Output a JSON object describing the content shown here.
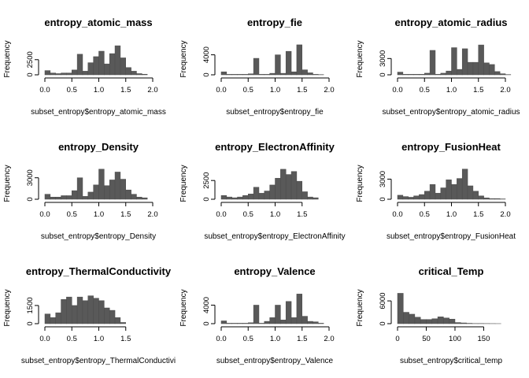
{
  "chart_data": [
    {
      "type": "bar",
      "title": "entropy_atomic_mass",
      "xlabel": "subset_entropy$entropy_atomic_mass",
      "ylabel": "Frequency",
      "bin_start": 0,
      "bin_width": 0.1,
      "values": [
        700,
        300,
        200,
        300,
        300,
        800,
        3400,
        600,
        2000,
        3000,
        3900,
        1800,
        3500,
        4800,
        2800,
        1200,
        600,
        200,
        100
      ],
      "xticks": [
        "0.0",
        "0.5",
        "1.0",
        "1.5",
        "2.0"
      ],
      "xtick_values": [
        0,
        0.5,
        1.0,
        1.5,
        2.0
      ],
      "yticks": [
        "0",
        "2500"
      ],
      "ytick_values": [
        0,
        2500
      ],
      "xlim": [
        0,
        2.0
      ],
      "ylim": [
        0,
        5200
      ]
    },
    {
      "type": "bar",
      "title": "entropy_fie",
      "xlabel": "subset_entropy$entropy_fie",
      "ylabel": "Frequency",
      "bin_start": 0,
      "bin_width": 0.1,
      "values": [
        600,
        100,
        100,
        100,
        100,
        200,
        3300,
        100,
        100,
        300,
        4000,
        300,
        4700,
        600,
        6000,
        1000,
        400,
        100,
        50,
        0,
        0
      ],
      "xticks": [
        "0.0",
        "0.5",
        "1.0",
        "1.5",
        "2.0"
      ],
      "xtick_values": [
        0,
        0.5,
        1.0,
        1.5,
        2.0
      ],
      "yticks": [
        "0",
        "4000"
      ],
      "ytick_values": [
        0,
        4000
      ],
      "xlim": [
        0,
        2.0
      ],
      "ylim": [
        0,
        6300
      ]
    },
    {
      "type": "bar",
      "title": "entropy_atomic_radius",
      "xlabel": "subset_entropy$entropy_atomic_radius",
      "ylabel": "Frequency",
      "bin_start": 0,
      "bin_width": 0.1,
      "values": [
        500,
        100,
        100,
        100,
        100,
        300,
        4500,
        100,
        300,
        700,
        5000,
        1000,
        4800,
        2300,
        2300,
        5500,
        2200,
        1900,
        600,
        200,
        50,
        0
      ],
      "xticks": [
        "0.0",
        "0.5",
        "1.0",
        "1.5",
        "2.0"
      ],
      "xtick_values": [
        0,
        0.5,
        1.0,
        1.5,
        2.0
      ],
      "yticks": [
        "0",
        "3000"
      ],
      "ytick_values": [
        0,
        3000
      ],
      "xlim": [
        0,
        2.1
      ],
      "ylim": [
        0,
        5800
      ]
    },
    {
      "type": "bar",
      "title": "entropy_Density",
      "xlabel": "subset_entropy$entropy_Density",
      "ylabel": "Frequency",
      "bin_start": 0,
      "bin_width": 0.1,
      "values": [
        700,
        300,
        300,
        500,
        500,
        1200,
        3000,
        400,
        1000,
        2000,
        4200,
        1900,
        2700,
        3800,
        2800,
        1300,
        700,
        300,
        200
      ],
      "xticks": [
        "0.0",
        "0.5",
        "1.0",
        "1.5",
        "2.0"
      ],
      "xtick_values": [
        0,
        0.5,
        1.0,
        1.5,
        2.0
      ],
      "yticks": [
        "0",
        "3000"
      ],
      "ytick_values": [
        0,
        3000
      ],
      "xlim": [
        0,
        2.0
      ],
      "ylim": [
        0,
        4400
      ]
    },
    {
      "type": "bar",
      "title": "entropy_ElectronAffinity",
      "xlabel": "subset_entropy$entropy_ElectronAffinity",
      "ylabel": "Frequency",
      "bin_start": 0,
      "bin_width": 0.1,
      "values": [
        500,
        300,
        200,
        300,
        500,
        700,
        1600,
        800,
        1100,
        1900,
        2800,
        4000,
        3300,
        3700,
        2400,
        1000,
        300,
        200
      ],
      "xticks": [
        "0.0",
        "0.5",
        "1.0",
        "1.5"
      ],
      "xtick_values": [
        0,
        0.5,
        1.0,
        1.5
      ],
      "yticks": [
        "0",
        "2500"
      ],
      "ytick_values": [
        0,
        2500
      ],
      "xlim": [
        0,
        1.8
      ],
      "ylim": [
        0,
        4200
      ]
    },
    {
      "type": "bar",
      "title": "entropy_FusionHeat",
      "xlabel": "subset_entropy$entropy_FusionHeat",
      "ylabel": "Frequency",
      "bin_start": 0,
      "bin_width": 0.1,
      "values": [
        600,
        400,
        300,
        500,
        700,
        1200,
        2200,
        900,
        1700,
        2900,
        2200,
        3100,
        4500,
        2000,
        1200,
        500,
        200,
        100,
        100,
        50
      ],
      "xticks": [
        "0.0",
        "0.5",
        "1.0",
        "1.5",
        "2.0"
      ],
      "xtick_values": [
        0,
        0.5,
        1.0,
        1.5,
        2.0
      ],
      "yticks": [
        "0",
        "3000"
      ],
      "ytick_values": [
        0,
        3000
      ],
      "xlim": [
        0,
        2.0
      ],
      "ylim": [
        0,
        4700
      ]
    },
    {
      "type": "bar",
      "title": "entropy_ThermalConductivity",
      "xlabel": "subset_entropy$entropy_ThermalConductivi",
      "ylabel": "Frequency",
      "bin_start": 0,
      "bin_width": 0.1,
      "values": [
        800,
        500,
        900,
        2000,
        2200,
        1500,
        2200,
        1900,
        2300,
        2100,
        1900,
        1300,
        1100,
        500,
        100,
        0
      ],
      "xticks": [
        "0.0",
        "0.5",
        "1.0",
        "1.5"
      ],
      "xtick_values": [
        0,
        0.5,
        1.0,
        1.5
      ],
      "yticks": [
        "0",
        "1500"
      ],
      "ytick_values": [
        0,
        1500
      ],
      "xlim": [
        0,
        1.6
      ],
      "ylim": [
        0,
        2600
      ]
    },
    {
      "type": "bar",
      "title": "entropy_Valence",
      "xlabel": "subset_entropy$entropy_Valence",
      "ylabel": "Frequency",
      "bin_start": 0,
      "bin_width": 0.1,
      "values": [
        600,
        100,
        100,
        100,
        100,
        200,
        4000,
        100,
        500,
        1300,
        4000,
        800,
        4800,
        1300,
        6400,
        1600,
        500,
        400,
        100,
        0,
        0
      ],
      "xticks": [
        "0.0",
        "0.5",
        "1.0",
        "1.5",
        "2.0"
      ],
      "xtick_values": [
        0,
        0.5,
        1.0,
        1.5,
        2.0
      ],
      "yticks": [
        "0",
        "4000"
      ],
      "ytick_values": [
        0,
        4000
      ],
      "xlim": [
        0,
        2.0
      ],
      "ylim": [
        0,
        6800
      ]
    },
    {
      "type": "bar",
      "title": "critical_Temp",
      "xlabel": "subset_entropy$critical_temp",
      "ylabel": "Frequency",
      "bin_start": 0,
      "bin_width": 10,
      "values": [
        8000,
        3000,
        2500,
        1700,
        1100,
        1100,
        1300,
        1800,
        1500,
        1200,
        300,
        200,
        100,
        50,
        50,
        30,
        20,
        10
      ],
      "xticks": [
        "0",
        "50",
        "100",
        "150"
      ],
      "xtick_values": [
        0,
        50,
        100,
        150
      ],
      "yticks": [
        "0",
        "6000"
      ],
      "ytick_values": [
        0,
        6000
      ],
      "xlim": [
        0,
        185
      ],
      "ylim": [
        0,
        8300
      ]
    }
  ]
}
